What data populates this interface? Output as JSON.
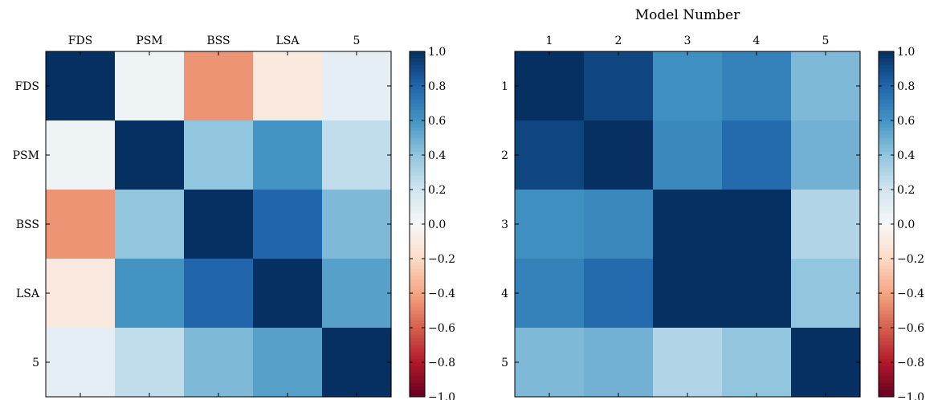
{
  "chart_data": [
    {
      "type": "heatmap",
      "title": "",
      "xlabel": "",
      "ylabel": "",
      "x_categories": [
        "FDS",
        "PSM",
        "BSS",
        "LSA",
        "5"
      ],
      "y_categories": [
        "FDS",
        "PSM",
        "BSS",
        "LSA",
        "5"
      ],
      "values": [
        [
          1.0,
          0.05,
          -0.45,
          -0.1,
          0.1
        ],
        [
          0.05,
          1.0,
          0.4,
          0.6,
          0.25
        ],
        [
          -0.45,
          0.4,
          1.0,
          0.8,
          0.45
        ],
        [
          -0.1,
          0.6,
          0.8,
          1.0,
          0.55
        ],
        [
          0.1,
          0.25,
          0.45,
          0.55,
          1.0
        ]
      ],
      "colormap": "RdBu",
      "vmin": -1.0,
      "vmax": 1.0,
      "colorbar_ticks": [
        "1.0",
        "0.8",
        "0.6",
        "0.4",
        "0.2",
        "0.0",
        "−0.2",
        "−0.4",
        "−0.6",
        "−0.8",
        "−1.0"
      ]
    },
    {
      "type": "heatmap",
      "title": "Model Number",
      "xlabel": "",
      "ylabel": "",
      "x_categories": [
        "1",
        "2",
        "3",
        "4",
        "5"
      ],
      "y_categories": [
        "1",
        "2",
        "3",
        "4",
        "5"
      ],
      "values": [
        [
          1.0,
          0.92,
          0.62,
          0.68,
          0.45
        ],
        [
          0.92,
          1.0,
          0.65,
          0.78,
          0.48
        ],
        [
          0.62,
          0.65,
          1.0,
          1.0,
          0.3
        ],
        [
          0.68,
          0.78,
          1.0,
          1.0,
          0.4
        ],
        [
          0.45,
          0.48,
          0.3,
          0.4,
          1.0
        ]
      ],
      "colormap": "RdBu",
      "vmin": -1.0,
      "vmax": 1.0,
      "colorbar_ticks": [
        "1.0",
        "0.8",
        "0.6",
        "0.4",
        "0.2",
        "0.0",
        "−0.2",
        "−0.4",
        "−0.6",
        "−0.8",
        "−1.0"
      ]
    }
  ]
}
